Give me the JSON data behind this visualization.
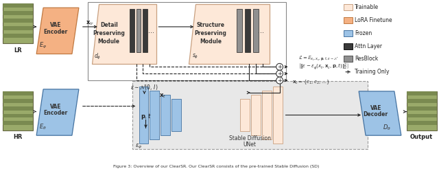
{
  "fig_caption": "Figure 3: Overview of our ClearSR. Our ClearSR consists of the pre-trained Stable Diffusion (SD)",
  "bg_color": "#ffffff",
  "colors": {
    "trainable_fill": "#fde8d8",
    "trainable_edge": "#c8a080",
    "lora_fill": "#f4b183",
    "lora_edge": "#c07840",
    "frozen_fill": "#9dc3e6",
    "frozen_edge": "#4472a0",
    "attn_fill": "#3a3a3a",
    "resblock_fill": "#909090",
    "sd_bg": "#e0e0e0",
    "arrow": "#222222",
    "grass1": "#a0a060",
    "grass2": "#b0b070"
  },
  "legend": [
    {
      "label": "Trainable",
      "fill": "#fde8d8",
      "edge": "#c8a080"
    },
    {
      "label": "LoRA Finetune",
      "fill": "#f4b183",
      "edge": "#c07840"
    },
    {
      "label": "Frozen",
      "fill": "#9dc3e6",
      "edge": "#4472a0"
    },
    {
      "label": "Attn Layer",
      "fill": "#3a3a3a",
      "edge": "#111111"
    },
    {
      "label": "ResBlock",
      "fill": "#909090",
      "edge": "#505050"
    },
    {
      "label": "Training Only",
      "fill": "#000000",
      "edge": "#000000"
    }
  ]
}
